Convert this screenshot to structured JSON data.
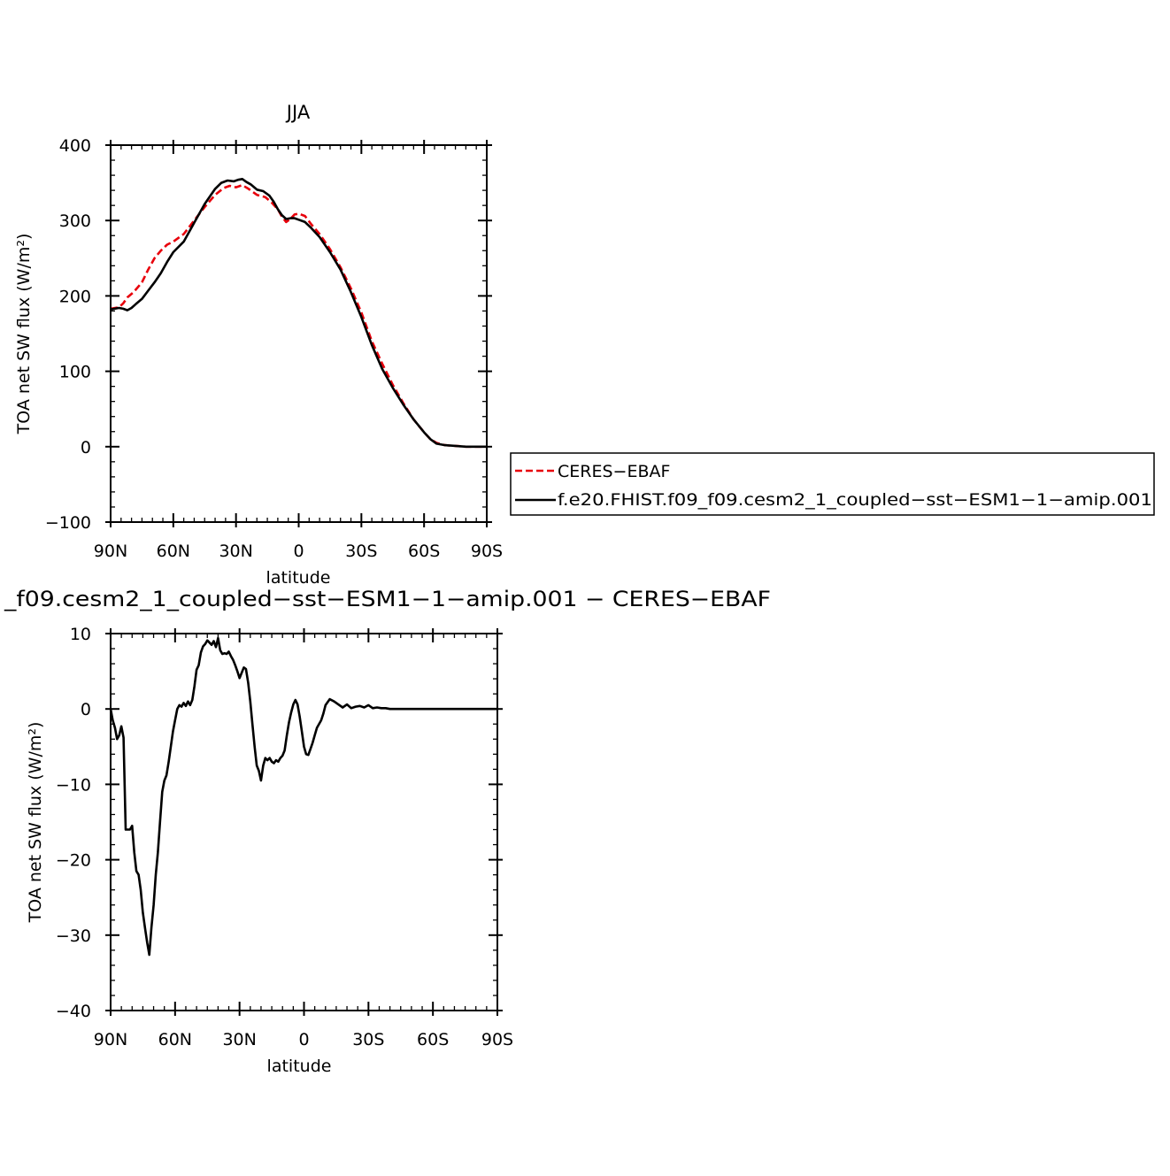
{
  "chart_data": [
    {
      "type": "line",
      "title": "JJA",
      "xlabel": "latitude",
      "ylabel": "TOA net SW flux (W/m²)",
      "xlim": [
        90,
        -90
      ],
      "ylim": [
        -100,
        400
      ],
      "xticks": [
        90,
        60,
        30,
        0,
        -30,
        -60,
        -90
      ],
      "xtick_labels": [
        "90N",
        "60N",
        "30N",
        "0",
        "30S",
        "60S",
        "90S"
      ],
      "yticks": [
        -100,
        0,
        100,
        200,
        300,
        400
      ],
      "ytick_labels": [
        "−100",
        "0",
        "100",
        "200",
        "300",
        "400"
      ],
      "legend_position": "right",
      "series": [
        {
          "name": "CERES−EBAF",
          "color": "#e8000b",
          "style": "dashed",
          "x": [
            90,
            86,
            84,
            82,
            79,
            75,
            72,
            69,
            66,
            63,
            60,
            55,
            50,
            45,
            40,
            36,
            33,
            30,
            27,
            24,
            20,
            16,
            13,
            10,
            8,
            6,
            4,
            2,
            0,
            -3,
            -6,
            -10,
            -15,
            -20,
            -25,
            -30,
            -35,
            -40,
            -45,
            -50,
            -55,
            -60,
            -63,
            -66,
            -70,
            -75,
            -80,
            -85,
            -90
          ],
          "y": [
            183,
            185,
            190,
            198,
            205,
            218,
            235,
            250,
            260,
            268,
            272,
            282,
            300,
            318,
            334,
            343,
            346,
            344,
            347,
            342,
            334,
            331,
            324,
            315,
            305,
            298,
            302,
            308,
            309,
            306,
            295,
            282,
            262,
            238,
            210,
            178,
            140,
            110,
            82,
            58,
            36,
            19,
            10,
            5,
            2,
            1,
            0,
            0,
            0
          ]
        },
        {
          "name": "f.e20.FHIST.f09_f09.cesm2_1_coupled−sst−ESM1−1−amip.001",
          "color": "#000000",
          "style": "solid",
          "x": [
            90,
            86,
            84,
            82,
            80,
            78,
            75,
            72,
            69,
            66,
            63,
            60,
            55,
            50,
            45,
            40,
            37,
            34,
            31,
            29,
            27,
            25,
            23,
            20,
            17,
            14,
            12,
            10,
            8,
            6,
            4,
            2,
            0,
            -3,
            -6,
            -10,
            -15,
            -20,
            -25,
            -30,
            -35,
            -40,
            -45,
            -50,
            -55,
            -60,
            -63,
            -66,
            -70,
            -75,
            -80,
            -85,
            -90
          ],
          "y": [
            182,
            184,
            183,
            181,
            184,
            189,
            196,
            207,
            218,
            230,
            245,
            258,
            272,
            297,
            322,
            342,
            350,
            353,
            352,
            354,
            355,
            351,
            348,
            341,
            339,
            333,
            325,
            315,
            307,
            302,
            303,
            303,
            301,
            298,
            290,
            278,
            258,
            235,
            205,
            172,
            135,
            103,
            78,
            56,
            36,
            19,
            10,
            4,
            2,
            1,
            0,
            0,
            0
          ]
        }
      ]
    },
    {
      "type": "line",
      "title": "_f09.cesm2_1_coupled−sst−ESM1−1−amip.001  −  CERES−EBAF",
      "xlabel": "latitude",
      "ylabel": "TOA net SW flux (W/m²)",
      "xlim": [
        90,
        -90
      ],
      "ylim": [
        -40,
        10
      ],
      "xticks": [
        90,
        60,
        30,
        0,
        -30,
        -60,
        -90
      ],
      "xtick_labels": [
        "90N",
        "60N",
        "30N",
        "0",
        "30S",
        "60S",
        "90S"
      ],
      "yticks": [
        -40,
        -30,
        -20,
        -10,
        0,
        10
      ],
      "ytick_labels": [
        "−40",
        "−30",
        "−20",
        "−10",
        "0",
        "10"
      ],
      "series": [
        {
          "color": "#000000",
          "style": "solid",
          "x": [
            90,
            89,
            88,
            87,
            86,
            85,
            84,
            83,
            82,
            81,
            80,
            79,
            78,
            77,
            76,
            75,
            74,
            73,
            72,
            71,
            70,
            69,
            68,
            67,
            66,
            65,
            64,
            63,
            62,
            61,
            60,
            59,
            58,
            57,
            56,
            55,
            54,
            53,
            52,
            51,
            50,
            49,
            48,
            47,
            46,
            45,
            44,
            43,
            42,
            41,
            40,
            39,
            38,
            37,
            36,
            35,
            34,
            33,
            32,
            31,
            30,
            29,
            28,
            27,
            26,
            25,
            24,
            23,
            22,
            21,
            20,
            19,
            18,
            17,
            16,
            15,
            14,
            13,
            12,
            11,
            10,
            9,
            8,
            7,
            6,
            5,
            4,
            3,
            2,
            1,
            0,
            -1,
            -2,
            -3,
            -4,
            -5,
            -6,
            -7,
            -8,
            -9,
            -10,
            -12,
            -14,
            -16,
            -18,
            -20,
            -22,
            -24,
            -26,
            -28,
            -30,
            -32,
            -34,
            -36,
            -38,
            -40,
            -42,
            -44,
            -46,
            -48,
            -50,
            -52,
            -54,
            -56,
            -58,
            -60,
            -62,
            -64,
            -66,
            -68,
            -70,
            -72,
            -74,
            -76,
            -78,
            -80,
            -82,
            -84,
            -86,
            -88,
            -90
          ],
          "y": [
            0,
            -1.5,
            -2.5,
            -4,
            -3.5,
            -2.3,
            -3.8,
            -16,
            -16,
            -16,
            -15.5,
            -19,
            -21.5,
            -22,
            -24,
            -27,
            -29,
            -31,
            -32.6,
            -29,
            -26,
            -22,
            -19,
            -15,
            -11,
            -9.5,
            -8.8,
            -7,
            -5,
            -3,
            -1.5,
            0,
            0.5,
            0.3,
            0.8,
            0.4,
            1,
            0.5,
            1.2,
            3,
            5.2,
            5.8,
            7.5,
            8.3,
            8.6,
            9.1,
            8.8,
            8.5,
            9,
            8.2,
            9.4,
            7.8,
            7.3,
            7.4,
            7.3,
            7.6,
            7.0,
            6.5,
            5.8,
            5.0,
            4.1,
            4.8,
            5.5,
            5.3,
            3.5,
            1,
            -2,
            -5,
            -7.5,
            -8.2,
            -9.5,
            -7.5,
            -6.5,
            -6.8,
            -6.5,
            -7,
            -7.2,
            -6.8,
            -7,
            -6.5,
            -6.2,
            -5.5,
            -3.5,
            -1.8,
            -0.5,
            0.6,
            1.2,
            0.6,
            -1,
            -3,
            -5,
            -6,
            -6.1,
            -5.3,
            -4.5,
            -3.5,
            -2.5,
            -2,
            -1.5,
            -0.6,
            0.5,
            1.3,
            1,
            0.6,
            0.2,
            0.6,
            0.1,
            0.3,
            0.4,
            0.2,
            0.5,
            0.1,
            0.2,
            0.1,
            0.1,
            0,
            0,
            0,
            0,
            0,
            0,
            0,
            0,
            0,
            0,
            0,
            0,
            0,
            0,
            0,
            0,
            0,
            0,
            0,
            0,
            0,
            0,
            0,
            0,
            0,
            0
          ]
        }
      ]
    }
  ]
}
